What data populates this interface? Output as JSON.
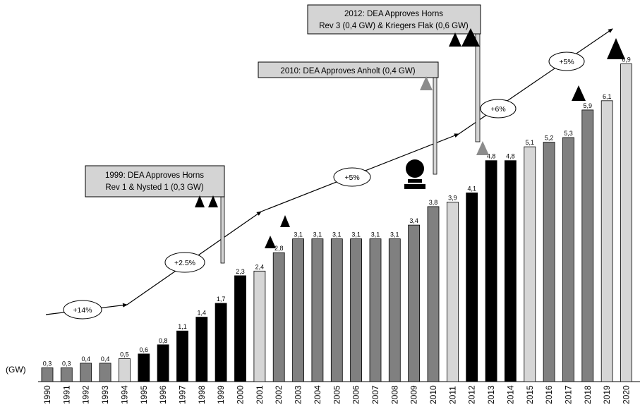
{
  "chart_data": {
    "type": "bar",
    "categories": [
      "1990",
      "1991",
      "1992",
      "1993",
      "1994",
      "1995",
      "1996",
      "1997",
      "1998",
      "1999",
      "2000",
      "2001",
      "2002",
      "2003",
      "2004",
      "2005",
      "2006",
      "2007",
      "2008",
      "2009",
      "2010",
      "2011",
      "2012",
      "2013",
      "2014",
      "2015",
      "2016",
      "2017",
      "2018",
      "2019",
      "2020"
    ],
    "values": [
      0.3,
      0.3,
      0.4,
      0.4,
      0.5,
      0.6,
      0.8,
      1.1,
      1.4,
      1.7,
      2.3,
      2.4,
      2.8,
      3.1,
      3.1,
      3.1,
      3.1,
      3.1,
      3.1,
      3.4,
      3.8,
      3.9,
      4.1,
      4.8,
      4.8,
      5.1,
      5.2,
      5.3,
      5.9,
      6.1,
      6.9
    ],
    "value_labels": [
      "0,3",
      "0,3",
      "0,4",
      "0,4",
      "0,5",
      "0,6",
      "0,8",
      "1,1",
      "1,4",
      "1,7",
      "2,3",
      "2,4",
      "2,8",
      "3,1",
      "3,1",
      "3,1",
      "3,1",
      "3,1",
      "3,1",
      "3,4",
      "3,8",
      "3,9",
      "4,1",
      "4,8",
      "4,8",
      "5,1",
      "5,2",
      "5,3",
      "5,9",
      "6,1",
      "6,9"
    ],
    "bar_shades": [
      "mid",
      "mid",
      "mid",
      "mid",
      "light",
      "black",
      "black",
      "black",
      "black",
      "black",
      "black",
      "light",
      "mid",
      "mid",
      "mid",
      "mid",
      "mid",
      "mid",
      "mid",
      "mid",
      "mid",
      "light",
      "black",
      "black",
      "black",
      "light",
      "mid",
      "mid",
      "mid",
      "light",
      "light"
    ],
    "colors": {
      "black": "#000000",
      "mid": "#808080",
      "light": "#d6d6d6",
      "gray_marker": "#8c8c8c"
    },
    "unit_label": "(GW)",
    "ylim": [
      0,
      7.2
    ],
    "grid": false,
    "growth_labels": [
      "+14%",
      "+2.5%",
      "+5%",
      "+6%",
      "+5%"
    ],
    "annotations": [
      {
        "lines": [
          "1999: DEA Approves Horns",
          "Rev 1 & Nysted 1 (0,3 GW)"
        ],
        "year": "1999"
      },
      {
        "lines": [
          "2010: DEA Approves Anholt (0,4 GW)"
        ],
        "year": "2010"
      },
      {
        "lines": [
          "2012:  DEA Approves Horns",
          "Rev 3 (0,4 GW) & Kriegers Flak (0,6 GW)"
        ],
        "year": "2012"
      }
    ],
    "markers": [
      {
        "type": "triangle",
        "color": "black",
        "year": "1998"
      },
      {
        "type": "triangle",
        "color": "black",
        "year": "1999"
      },
      {
        "type": "triangle",
        "color": "black",
        "year": "2001"
      },
      {
        "type": "triangle",
        "color": "black",
        "year": "2002"
      },
      {
        "type": "triangle",
        "color": "gray",
        "year": "2010"
      },
      {
        "type": "person",
        "color": "black",
        "year": "2009"
      },
      {
        "type": "triangle",
        "color": "black",
        "year": "2011"
      },
      {
        "type": "triangle",
        "color": "black",
        "year": "2012"
      },
      {
        "type": "triangle",
        "color": "gray",
        "year": "2012"
      },
      {
        "type": "triangle",
        "color": "black",
        "year": "2017"
      },
      {
        "type": "triangle",
        "color": "black",
        "year": "2019"
      }
    ]
  }
}
